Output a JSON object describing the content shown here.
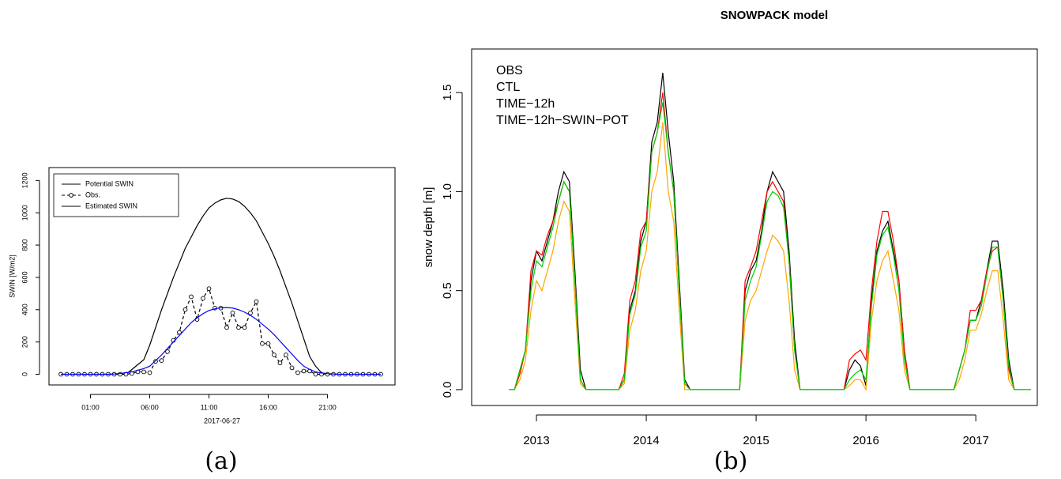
{
  "chart_data": [
    {
      "type": "line",
      "caption": "(a)",
      "xlabel": "2017-06-27",
      "ylabel": "SWIN [W/m2]",
      "x": [
        -1.5,
        -1,
        -0.5,
        0,
        0.5,
        1,
        1.5,
        2,
        2.5,
        3,
        3.5,
        4,
        4.5,
        5,
        5.5,
        6,
        6.5,
        7,
        7.5,
        8,
        8.5,
        9,
        9.5,
        10,
        10.5,
        11,
        11.5,
        12,
        12.5,
        13,
        13.5,
        14,
        14.5,
        15,
        15.5,
        16,
        16.5,
        17,
        17.5,
        18,
        18.5,
        19,
        19.5,
        20,
        20.5,
        21,
        21.5,
        22,
        22.5,
        23,
        23.5,
        24,
        24.5,
        25,
        25.5
      ],
      "series": [
        {
          "name": "Potential SWIN",
          "color": "#000000",
          "linestyle": "solid",
          "marker": "none",
          "values": [
            0,
            0,
            0,
            0,
            0,
            0,
            0,
            0,
            0,
            0,
            0,
            0,
            30,
            60,
            90,
            180,
            290,
            400,
            500,
            600,
            690,
            780,
            850,
            920,
            980,
            1030,
            1060,
            1080,
            1090,
            1085,
            1070,
            1040,
            1000,
            950,
            880,
            810,
            730,
            640,
            540,
            440,
            330,
            220,
            110,
            50,
            10,
            0,
            0,
            0,
            0,
            0,
            0,
            0,
            0,
            0,
            0
          ]
        },
        {
          "name": "Obs.",
          "color": "#000000",
          "linestyle": "dashed",
          "marker": "circle",
          "values": [
            0,
            0,
            0,
            0,
            0,
            0,
            0,
            0,
            0,
            0,
            0,
            0,
            5,
            15,
            15,
            10,
            80,
            85,
            140,
            210,
            260,
            400,
            480,
            340,
            470,
            530,
            410,
            410,
            290,
            380,
            290,
            290,
            380,
            450,
            190,
            190,
            120,
            70,
            120,
            40,
            10,
            20,
            20,
            0,
            0,
            0,
            0,
            0,
            0,
            0,
            0,
            0,
            0,
            0,
            0
          ]
        },
        {
          "name": "Estimated SWIN",
          "color": "#0000ff",
          "linestyle": "solid",
          "marker": "none",
          "values": [
            0,
            0,
            0,
            0,
            0,
            0,
            0,
            0,
            0,
            2,
            5,
            10,
            15,
            25,
            35,
            50,
            85,
            120,
            160,
            200,
            240,
            280,
            320,
            350,
            375,
            395,
            405,
            412,
            413,
            410,
            400,
            385,
            365,
            340,
            310,
            280,
            245,
            205,
            165,
            125,
            85,
            50,
            30,
            15,
            8,
            4,
            2,
            0,
            0,
            0,
            0,
            0,
            0,
            0,
            0
          ]
        }
      ],
      "xlim": [
        -2.5,
        26.7
      ],
      "xticks": [
        {
          "value": 1,
          "label": "01:00"
        },
        {
          "value": 6,
          "label": "06:00"
        },
        {
          "value": 11,
          "label": "11:00"
        },
        {
          "value": 16,
          "label": "16:00"
        },
        {
          "value": 21,
          "label": "21:00"
        }
      ],
      "ylim": [
        -66,
        1280
      ],
      "yticks": [
        0,
        200,
        400,
        600,
        800,
        1000,
        1200
      ],
      "legend": "topleft",
      "legend_symbols": true,
      "grid": false
    },
    {
      "type": "line",
      "title": "SNOWPACK model",
      "caption": "(b)",
      "ylabel": "snow depth [m]",
      "x": [
        2012.75,
        2012.8,
        2012.85,
        2012.9,
        2012.95,
        2013,
        2013.05,
        2013.1,
        2013.15,
        2013.2,
        2013.25,
        2013.3,
        2013.35,
        2013.4,
        2013.45,
        2013.5,
        2013.55,
        2013.6,
        2013.65,
        2013.7,
        2013.75,
        2013.8,
        2013.85,
        2013.9,
        2013.95,
        2014,
        2014.05,
        2014.1,
        2014.15,
        2014.2,
        2014.25,
        2014.3,
        2014.35,
        2014.4,
        2014.45,
        2014.5,
        2014.55,
        2014.6,
        2014.65,
        2014.7,
        2014.75,
        2014.8,
        2014.85,
        2014.9,
        2014.95,
        2015,
        2015.05,
        2015.1,
        2015.15,
        2015.2,
        2015.25,
        2015.3,
        2015.35,
        2015.4,
        2015.45,
        2015.5,
        2015.55,
        2015.6,
        2015.65,
        2015.7,
        2015.75,
        2015.8,
        2015.85,
        2015.9,
        2015.95,
        2016,
        2016.05,
        2016.1,
        2016.15,
        2016.2,
        2016.25,
        2016.3,
        2016.35,
        2016.4,
        2016.45,
        2016.5,
        2016.55,
        2016.6,
        2016.65,
        2016.7,
        2016.75,
        2016.8,
        2016.85,
        2016.9,
        2016.95,
        2017,
        2017.05,
        2017.1,
        2017.15,
        2017.2,
        2017.25,
        2017.3,
        2017.35,
        2017.4,
        2017.45,
        2017.5
      ],
      "series": [
        {
          "name": "OBS",
          "color": "#000000",
          "values": [
            0,
            0,
            0.1,
            0.2,
            0.55,
            0.7,
            0.65,
            0.75,
            0.85,
            1.0,
            1.1,
            1.05,
            0.6,
            0.1,
            0,
            0,
            0,
            0,
            0,
            0,
            0,
            0.05,
            0.4,
            0.5,
            0.75,
            0.85,
            1.25,
            1.35,
            1.6,
            1.3,
            1.05,
            0.55,
            0.05,
            0,
            0,
            0,
            0,
            0,
            0,
            0,
            0,
            0,
            0,
            0.5,
            0.6,
            0.65,
            0.8,
            1.0,
            1.1,
            1.05,
            1.0,
            0.7,
            0.25,
            0,
            0,
            0,
            0,
            0,
            0,
            0,
            0,
            0,
            0.1,
            0.15,
            0.12,
            0.02,
            0.45,
            0.7,
            0.8,
            0.85,
            0.7,
            0.55,
            0.2,
            0,
            0,
            0,
            0,
            0,
            0,
            0,
            0,
            0,
            0.1,
            0.2,
            0.35,
            0.35,
            0.45,
            0.6,
            0.75,
            0.75,
            0.5,
            0.15,
            0,
            0,
            0,
            0
          ]
        },
        {
          "name": "CTL",
          "color": "#ff0000",
          "values": [
            0,
            0,
            0.08,
            0.2,
            0.6,
            0.7,
            0.68,
            0.78,
            0.85,
            0.95,
            1.05,
            1.0,
            0.55,
            0.05,
            0,
            0,
            0,
            0,
            0,
            0,
            0,
            0.08,
            0.45,
            0.55,
            0.8,
            0.85,
            1.2,
            1.3,
            1.5,
            1.2,
            1.0,
            0.5,
            0.03,
            0,
            0,
            0,
            0,
            0,
            0,
            0,
            0,
            0,
            0,
            0.55,
            0.62,
            0.7,
            0.85,
            1.0,
            1.05,
            1.0,
            0.95,
            0.65,
            0.2,
            0,
            0,
            0,
            0,
            0,
            0,
            0,
            0,
            0,
            0.15,
            0.18,
            0.2,
            0.15,
            0.5,
            0.75,
            0.9,
            0.9,
            0.75,
            0.55,
            0.2,
            0,
            0,
            0,
            0,
            0,
            0,
            0,
            0,
            0,
            0.1,
            0.2,
            0.4,
            0.4,
            0.45,
            0.6,
            0.7,
            0.72,
            0.45,
            0.1,
            0,
            0,
            0,
            0
          ]
        },
        {
          "name": "TIME−12h",
          "color": "#ffa500",
          "values": [
            0,
            0,
            0.05,
            0.15,
            0.4,
            0.55,
            0.5,
            0.6,
            0.7,
            0.85,
            0.95,
            0.9,
            0.45,
            0.03,
            0,
            0,
            0,
            0,
            0,
            0,
            0,
            0.03,
            0.3,
            0.4,
            0.6,
            0.7,
            1.0,
            1.1,
            1.35,
            1.0,
            0.85,
            0.4,
            0,
            0,
            0,
            0,
            0,
            0,
            0,
            0,
            0,
            0,
            0,
            0.35,
            0.45,
            0.5,
            0.6,
            0.7,
            0.78,
            0.75,
            0.7,
            0.45,
            0.1,
            0,
            0,
            0,
            0,
            0,
            0,
            0,
            0,
            0,
            0.02,
            0.05,
            0.05,
            0,
            0.35,
            0.55,
            0.65,
            0.7,
            0.55,
            0.4,
            0.1,
            0,
            0,
            0,
            0,
            0,
            0,
            0,
            0,
            0,
            0.05,
            0.15,
            0.3,
            0.3,
            0.38,
            0.5,
            0.6,
            0.6,
            0.35,
            0.05,
            0,
            0,
            0,
            0
          ]
        },
        {
          "name": "TIME−12h−SWIN−POT",
          "color": "#00cd00",
          "values": [
            0,
            0,
            0.1,
            0.2,
            0.5,
            0.65,
            0.62,
            0.72,
            0.82,
            0.95,
            1.05,
            1.0,
            0.55,
            0.05,
            0,
            0,
            0,
            0,
            0,
            0,
            0,
            0.05,
            0.38,
            0.48,
            0.72,
            0.8,
            1.2,
            1.3,
            1.45,
            1.2,
            1.0,
            0.5,
            0.03,
            0,
            0,
            0,
            0,
            0,
            0,
            0,
            0,
            0,
            0,
            0.45,
            0.55,
            0.62,
            0.78,
            0.95,
            1.0,
            0.98,
            0.92,
            0.65,
            0.2,
            0,
            0,
            0,
            0,
            0,
            0,
            0,
            0,
            0,
            0.05,
            0.08,
            0.1,
            0.05,
            0.42,
            0.68,
            0.78,
            0.82,
            0.68,
            0.5,
            0.15,
            0,
            0,
            0,
            0,
            0,
            0,
            0,
            0,
            0,
            0.1,
            0.2,
            0.35,
            0.35,
            0.42,
            0.58,
            0.72,
            0.72,
            0.45,
            0.12,
            0,
            0,
            0,
            0
          ]
        }
      ],
      "xlim": [
        2012.41,
        2017.56
      ],
      "xticks": [
        2013,
        2014,
        2015,
        2016,
        2017
      ],
      "ylim": [
        -0.08,
        1.72
      ],
      "yticks": [
        {
          "value": 0,
          "label": "0.0"
        },
        0.5,
        {
          "value": 1,
          "label": "1.0"
        },
        1.5
      ],
      "legend": "topleft",
      "legend_symbols": false,
      "grid": false
    }
  ]
}
